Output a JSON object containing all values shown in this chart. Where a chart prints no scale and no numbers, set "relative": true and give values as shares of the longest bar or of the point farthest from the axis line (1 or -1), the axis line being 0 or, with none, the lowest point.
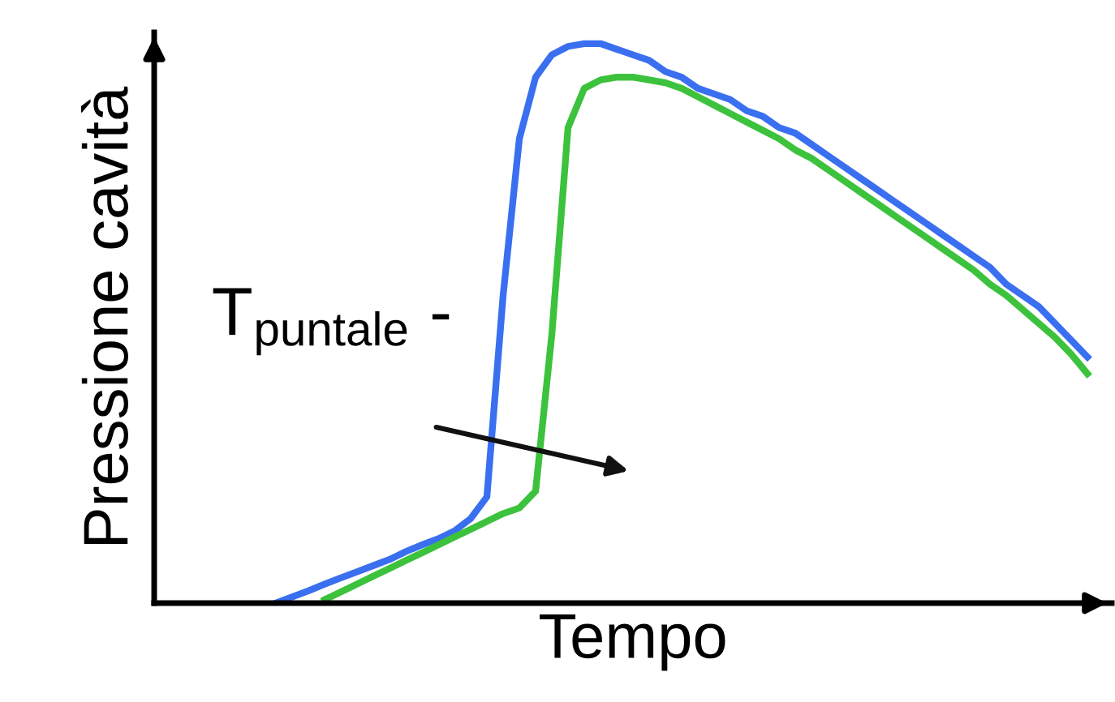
{
  "chart_data": {
    "type": "line",
    "relative": true,
    "xlabel": "Tempo",
    "ylabel": "Pressione cavità",
    "annotations": [
      "T$_{puntale}$ -"
    ],
    "categories": [
      null,
      null,
      null,
      null,
      null,
      null,
      null,
      null,
      null,
      null,
      null,
      null,
      null,
      null,
      null,
      null,
      null,
      null,
      null,
      null,
      null,
      null,
      null,
      null,
      null,
      null,
      null,
      null,
      null,
      null,
      null,
      null,
      null,
      null,
      null,
      null,
      null,
      null,
      null,
      null,
      null,
      null,
      null,
      null,
      null,
      null,
      null,
      null,
      null,
      null,
      null
    ],
    "grid": false,
    "legend": false,
    "tick_labels": false,
    "marker": "none",
    "line_style": "solid",
    "series": [
      {
        "color": "#3a6ff0",
        "values": [
          0,
          0.011,
          0.022,
          0.034,
          0.045,
          0.056,
          0.067,
          0.078,
          0.092,
          0.104,
          0.115,
          0.129,
          0.151,
          0.19,
          0.55,
          0.83,
          0.94,
          0.98,
          0.995,
          1.0,
          1.0,
          0.99,
          0.98,
          0.97,
          0.95,
          0.94,
          0.92,
          0.91,
          0.9,
          0.88,
          0.87,
          0.85,
          0.84,
          0.82,
          0.8,
          0.78,
          0.76,
          0.74,
          0.72,
          0.7,
          0.68,
          0.66,
          0.64,
          0.62,
          0.6,
          0.57,
          0.55,
          0.53,
          0.5,
          0.47,
          0.44
        ]
      },
      {
        "color": "#3cc23c",
        "values": [
          null,
          null,
          null,
          0.006,
          0.02,
          0.034,
          0.048,
          0.062,
          0.076,
          0.09,
          0.104,
          0.118,
          0.132,
          0.146,
          0.16,
          0.17,
          0.2,
          0.48,
          0.85,
          0.92,
          0.935,
          0.94,
          0.94,
          0.935,
          0.93,
          0.92,
          0.905,
          0.89,
          0.875,
          0.86,
          0.845,
          0.83,
          0.81,
          0.795,
          0.775,
          0.755,
          0.735,
          0.715,
          0.695,
          0.675,
          0.655,
          0.635,
          0.615,
          0.595,
          0.57,
          0.55,
          0.525,
          0.5,
          0.475,
          0.445,
          0.41
        ]
      }
    ]
  }
}
